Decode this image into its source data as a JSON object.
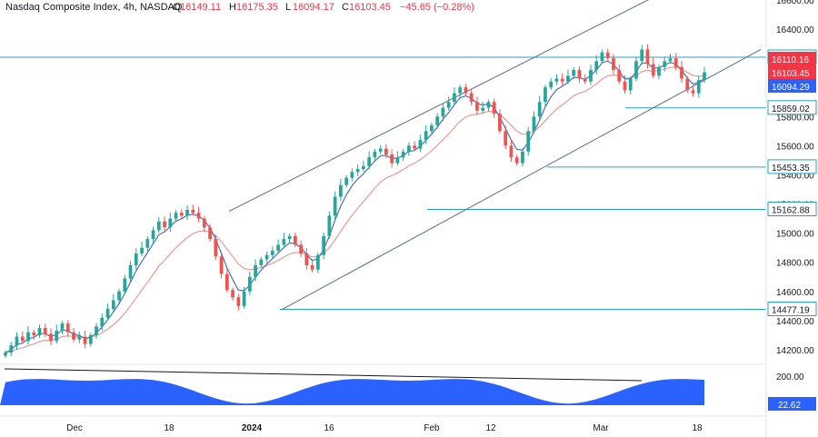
{
  "header": {
    "symbol": "Nasdaq Composite Index, 4h, NASDAQ",
    "o_label": "O",
    "o_value": "16149.11",
    "h_label": "H",
    "h_value": "16175.35",
    "l_label": "L",
    "l_value": "16094.17",
    "c_label": "C",
    "c_value": "16103.45",
    "change": "−45.65 (−0.28%)"
  },
  "colors": {
    "up": "#26a69a",
    "down": "#ef5350",
    "level": "#26a0c4",
    "ema_fast": "#4a6fbf",
    "ema_slow": "#e79a9a",
    "oscillator": "#2962ff",
    "channel": "#5b6b8c",
    "label_red": "#f23645",
    "label_blue": "#2962ff"
  },
  "chart_data": {
    "type": "candlestick",
    "x_ticks": [
      "Dec",
      "18",
      "2024",
      "16",
      "Feb",
      "12",
      "Mar",
      "18"
    ],
    "y_ticks": [
      "16600.00",
      "16400.00",
      "15800.00",
      "15600.00",
      "15400.00",
      "15200.00",
      "15000.00",
      "14800.00",
      "14600.00",
      "14400.00",
      "14200.00"
    ],
    "ylim": [
      14100,
      16700
    ],
    "horizontal_levels": [
      {
        "value": 16206.69,
        "label": "16206.69"
      },
      {
        "value": 15859.02,
        "label": "15859.02"
      },
      {
        "value": 15453.35,
        "label": "15453.35"
      },
      {
        "value": 15162.88,
        "label": "15162.88"
      },
      {
        "value": 14477.19,
        "label": "14477.19"
      }
    ],
    "price_labels": [
      {
        "value": 16110.16,
        "label": "16110.16",
        "color": "red"
      },
      {
        "value": 16103.45,
        "label": "16103.45",
        "color": "red"
      },
      {
        "value": 16094.29,
        "label": "16094.29",
        "color": "blue"
      }
    ],
    "close_series": [
      14180,
      14230,
      14290,
      14260,
      14320,
      14300,
      14350,
      14310,
      14260,
      14330,
      14380,
      14320,
      14270,
      14290,
      14240,
      14300,
      14360,
      14420,
      14480,
      14540,
      14600,
      14690,
      14780,
      14860,
      14900,
      14960,
      15020,
      15080,
      15040,
      15100,
      15140,
      15120,
      15160,
      15140,
      15100,
      15040,
      14960,
      14840,
      14720,
      14610,
      14560,
      14500,
      14600,
      14700,
      14780,
      14820,
      14850,
      14880,
      14920,
      14960,
      14980,
      14920,
      14860,
      14780,
      14750,
      14850,
      14980,
      15120,
      15250,
      15330,
      15380,
      15420,
      15440,
      15460,
      15520,
      15560,
      15580,
      15540,
      15480,
      15520,
      15560,
      15600,
      15580,
      15640,
      15700,
      15740,
      15800,
      15860,
      15900,
      15960,
      16000,
      15960,
      15900,
      15840,
      15860,
      15900,
      15820,
      15700,
      15600,
      15520,
      15480,
      15560,
      15700,
      15800,
      15900,
      16000,
      16040,
      16060,
      16040,
      16080,
      16120,
      16060,
      16040,
      16120,
      16180,
      16240,
      16200,
      16120,
      16040,
      15980,
      16060,
      16180,
      16260,
      16160,
      16080,
      16140,
      16180,
      16200,
      16140,
      16060,
      15980,
      15960,
      16050,
      16103.45
    ],
    "ema_fast": {
      "name": "",
      "source": "computed"
    },
    "ema_slow": {
      "name": "",
      "source": "computed"
    },
    "channel": {
      "upper": [
        {
          "x": 0.28,
          "v": 15150
        },
        {
          "x": 0.81,
          "v": 16650
        }
      ],
      "lower": [
        {
          "x": 0.345,
          "v": 14477
        },
        {
          "x": 0.93,
          "v": 16260
        }
      ],
      "upper_from_index": 35,
      "lower_from_index": 41
    },
    "oscillator": {
      "y_ticks": [
        "200.00"
      ],
      "current_label": "22.62",
      "trendline": true
    }
  }
}
